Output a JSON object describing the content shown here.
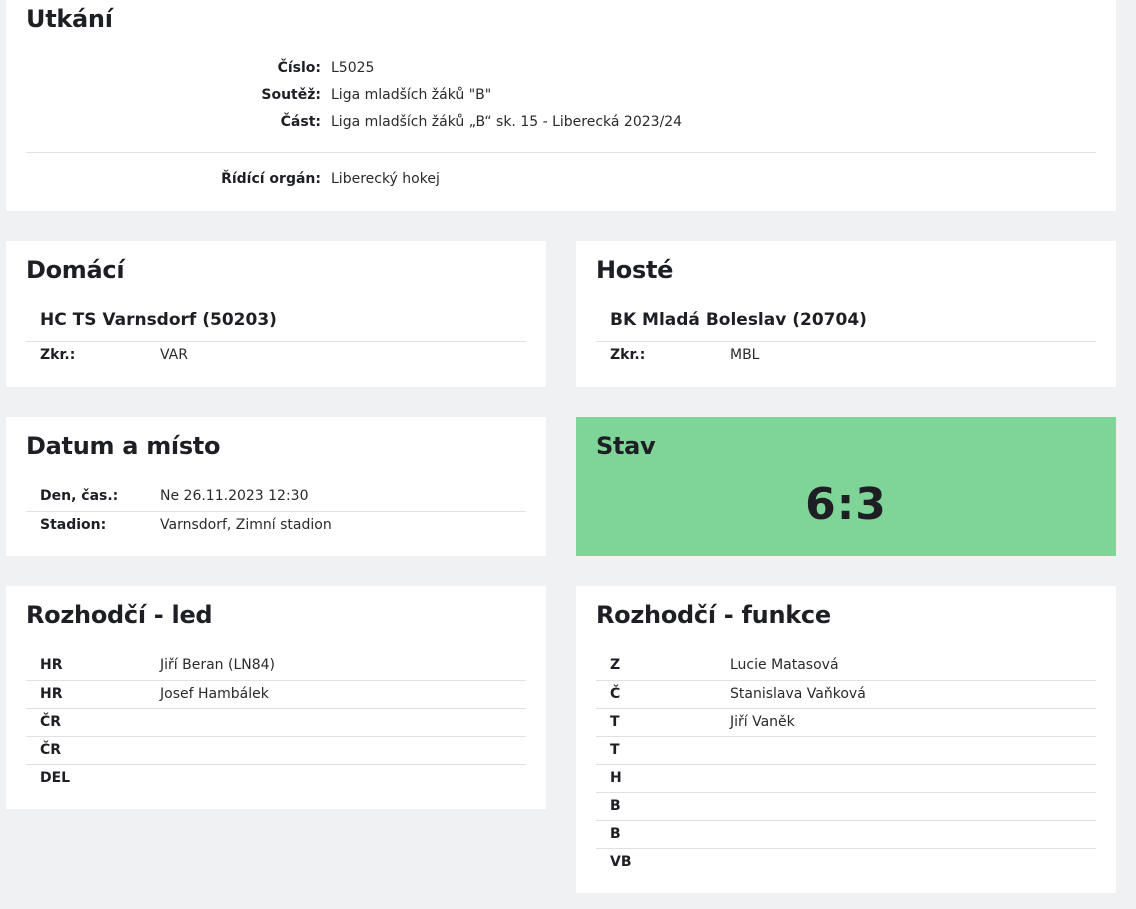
{
  "match": {
    "title": "Utkání",
    "rows": [
      {
        "label": "Číslo:",
        "value": "L5025"
      },
      {
        "label": "Soutěž:",
        "value": "Liga mladších žáků \"B\""
      },
      {
        "label": "Část:",
        "value": "Liga mladších žáků „B“ sk. 15 - Liberecká 2023/24"
      }
    ],
    "authority": {
      "label": "Řídící orgán:",
      "value": "Liberecký hokej"
    }
  },
  "home": {
    "title": "Domácí",
    "team": "HC TS Varnsdorf (50203)",
    "abbr_label": "Zkr.:",
    "abbr": "VAR"
  },
  "away": {
    "title": "Hosté",
    "team": "BK Mladá Boleslav (20704)",
    "abbr_label": "Zkr.:",
    "abbr": "MBL"
  },
  "date_place": {
    "title": "Datum a místo",
    "rows": [
      {
        "label": "Den, čas.:",
        "value": "Ne 26.11.2023 12:30"
      },
      {
        "label": "Stadion:",
        "value": "Varnsdorf, Zimní stadion"
      }
    ]
  },
  "score": {
    "title": "Stav",
    "value": "6:3",
    "color": "#7fd597"
  },
  "referees_ice": {
    "title": "Rozhodčí - led",
    "rows": [
      {
        "label": "HR",
        "value": "Jiří Beran (LN84)"
      },
      {
        "label": "HR",
        "value": "Josef Hambálek"
      },
      {
        "label": "ČR",
        "value": ""
      },
      {
        "label": "ČR",
        "value": ""
      },
      {
        "label": "DEL",
        "value": ""
      }
    ]
  },
  "referees_func": {
    "title": "Rozhodčí - funkce",
    "rows": [
      {
        "label": "Z",
        "value": "Lucie Matasová"
      },
      {
        "label": "Č",
        "value": "Stanislava Vaňková"
      },
      {
        "label": "T",
        "value": "Jiří Vaněk"
      },
      {
        "label": "T",
        "value": ""
      },
      {
        "label": "H",
        "value": ""
      },
      {
        "label": "B",
        "value": ""
      },
      {
        "label": "B",
        "value": ""
      },
      {
        "label": "VB",
        "value": ""
      }
    ]
  }
}
